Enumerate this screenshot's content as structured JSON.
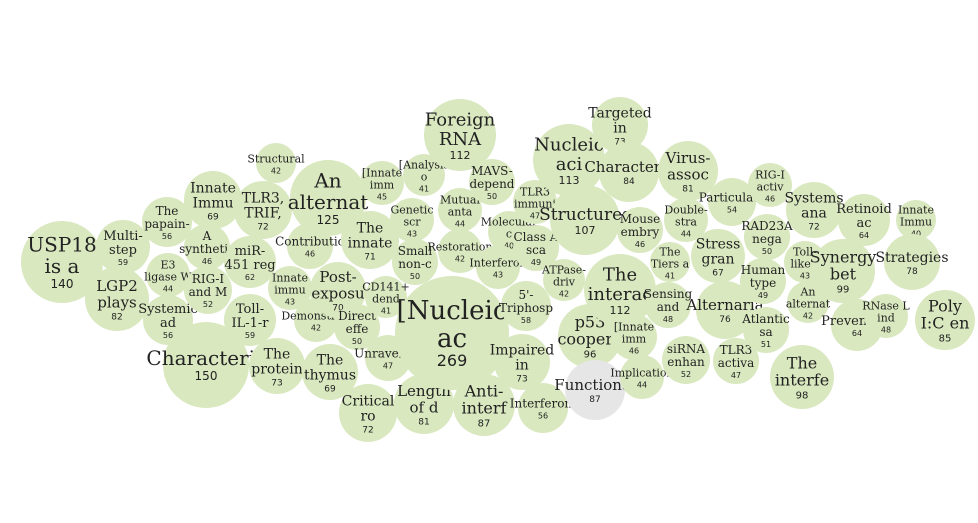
{
  "colors": {
    "bubble": "#d9e8bf",
    "bubble_muted": "#e6e6e6",
    "text": "#222222",
    "background": "#ffffff"
  },
  "chart_data": {
    "type": "bubble",
    "grid": false,
    "legend": "none",
    "nodes": [
      {
        "label": "USP18 is a",
        "value": 140
      },
      {
        "label": "Multi-step",
        "value": 59
      },
      {
        "label": "LGP2 plays",
        "value": 82
      },
      {
        "label": "The papain-",
        "value": 56
      },
      {
        "label": "E3 ligase W",
        "value": 44
      },
      {
        "label": "Systemic ad",
        "value": 56
      },
      {
        "label": "Innate Immu",
        "value": 69
      },
      {
        "label": "A synthetic",
        "value": 46
      },
      {
        "label": "RIG-I and M",
        "value": 52
      },
      {
        "label": "Characteriz",
        "value": 150
      },
      {
        "label": "TLR3, TRIF,",
        "value": 72
      },
      {
        "label": "miR-451 reg",
        "value": 62
      },
      {
        "label": "Toll-IL-1-r",
        "value": 59
      },
      {
        "label": "Structural",
        "value": 42
      },
      {
        "label": "Innate immu",
        "value": 43
      },
      {
        "label": "The protein",
        "value": 73
      },
      {
        "label": "An alternat",
        "value": 125
      },
      {
        "label": "Contributio",
        "value": 46
      },
      {
        "label": "Demonstrati",
        "value": 42
      },
      {
        "label": "Post-exposu",
        "value": 70
      },
      {
        "label": "The thymus",
        "value": 69
      },
      {
        "label": "[Innate imm",
        "value": 45
      },
      {
        "label": "The innate",
        "value": 71
      },
      {
        "label": "Direct effe",
        "value": 50
      },
      {
        "label": "Critical ro",
        "value": 72
      },
      {
        "label": "[Analysis o",
        "value": 41
      },
      {
        "label": "Genetic scr",
        "value": 43
      },
      {
        "label": "CD141+ dend",
        "value": 41
      },
      {
        "label": "Small non-c",
        "value": 50
      },
      {
        "label": "Unraveling",
        "value": 47
      },
      {
        "label": "Length of d",
        "value": 81
      },
      {
        "label": "Foreign RNA",
        "value": 112
      },
      {
        "label": "Mutual anta",
        "value": 44
      },
      {
        "label": "MAVS-depend",
        "value": 50
      },
      {
        "label": "Restoration",
        "value": 42
      },
      {
        "label": "Molecular c",
        "value": 40
      },
      {
        "label": "[Nucleic ac",
        "value": 269
      },
      {
        "label": "Interferon",
        "value": 43
      },
      {
        "label": "Anti-interf",
        "value": 87
      },
      {
        "label": "TLR3 immuni",
        "value": 47
      },
      {
        "label": "Class A sca",
        "value": 49
      },
      {
        "label": "5'-Triphosp",
        "value": 58
      },
      {
        "label": "Impaired in",
        "value": 73
      },
      {
        "label": "Interferon-",
        "value": 56
      },
      {
        "label": "Nucleic aci",
        "value": 113
      },
      {
        "label": "Structures",
        "value": 107
      },
      {
        "label": "ATPase-driv",
        "value": 42
      },
      {
        "label": "p53 coopera",
        "value": 96
      },
      {
        "label": "Functional",
        "value": 87
      },
      {
        "label": "Targeted in",
        "value": 73
      },
      {
        "label": "Characteriz",
        "value": 84
      },
      {
        "label": "The interac",
        "value": 112
      },
      {
        "label": "Mouse embry",
        "value": 46
      },
      {
        "label": "[Innate imm",
        "value": 46
      },
      {
        "label": "Implication",
        "value": 44
      },
      {
        "label": "Sensing and",
        "value": 48
      },
      {
        "label": "The Tiers a",
        "value": 41
      },
      {
        "label": "Virus-assoc",
        "value": 81
      },
      {
        "label": "Double-stra",
        "value": 44
      },
      {
        "label": "siRNA enhan",
        "value": 52
      },
      {
        "label": "Stress gran",
        "value": 67
      },
      {
        "label": "Alternaria",
        "value": 76
      },
      {
        "label": "Particulate",
        "value": 54
      },
      {
        "label": "TLR3 activa",
        "value": 47
      },
      {
        "label": "RIG-I activ",
        "value": 46
      },
      {
        "label": "RAD23A nega",
        "value": 50
      },
      {
        "label": "Human type",
        "value": 49
      },
      {
        "label": "Atlantic sa",
        "value": 51
      },
      {
        "label": "The interfe",
        "value": 98
      },
      {
        "label": "Toll-like r",
        "value": 43
      },
      {
        "label": "Systems ana",
        "value": 72
      },
      {
        "label": "An alternat",
        "value": 42
      },
      {
        "label": "Synergy bet",
        "value": 99
      },
      {
        "label": "Retinoid ac",
        "value": 64
      },
      {
        "label": "Prevention",
        "value": 64
      },
      {
        "label": "RNase L ind",
        "value": 48
      },
      {
        "label": "Innate Immu",
        "value": 40
      },
      {
        "label": "Strategies",
        "value": 78
      },
      {
        "label": "Poly I:C en",
        "value": 85
      }
    ]
  }
}
